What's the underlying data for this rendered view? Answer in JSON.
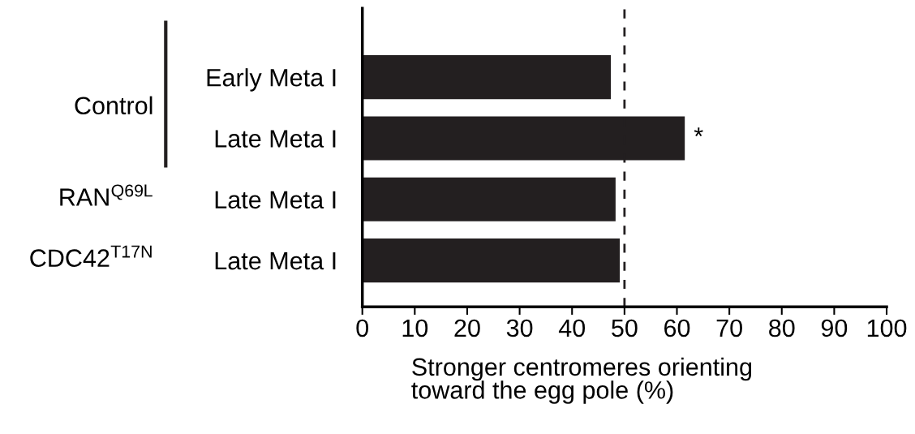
{
  "chart_data": {
    "type": "bar",
    "orientation": "horizontal",
    "categories": [
      "Early Meta I",
      "Late Meta I",
      "Late Meta I",
      "Late Meta I"
    ],
    "values": [
      47.4,
      61.5,
      48.3,
      49.1
    ],
    "value_labels": [
      null,
      "*",
      null,
      null
    ],
    "color": "#231f20",
    "xlim": [
      0,
      100
    ],
    "xticks": [
      0,
      10,
      20,
      30,
      40,
      50,
      60,
      70,
      80,
      90,
      100
    ],
    "xlabel": "Stronger centromeres orienting\ntoward the egg pole (%)",
    "ref_lines": [
      {
        "axis": "x",
        "value": 50,
        "line_style": "dashed",
        "color": "#231f20"
      }
    ],
    "annotations": [
      "Control",
      "RAN$^{Q69L}$",
      "CDC42$^{T17N}$"
    ],
    "grid": false,
    "legend": false
  }
}
